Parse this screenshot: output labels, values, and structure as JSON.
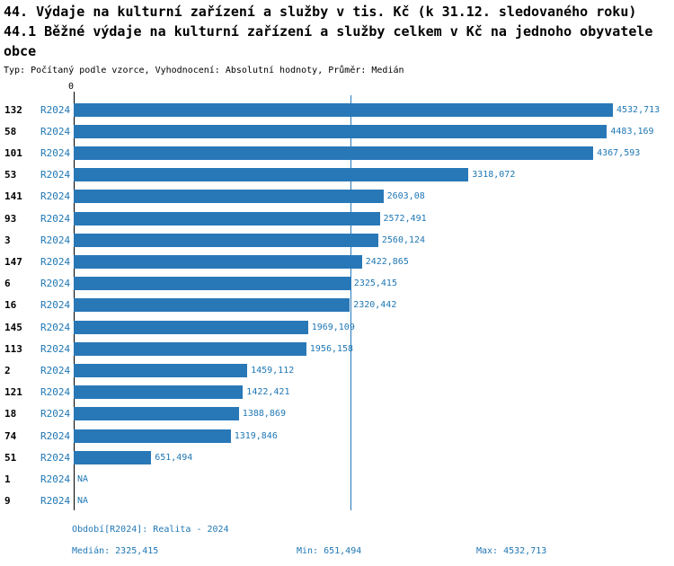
{
  "header": {
    "title_line1": "44. Výdaje na kulturní zařízení a služby v tis. Kč (k 31.12. sledovaného roku)",
    "title_line2": "44.1 Běžné výdaje na kulturní zařízení a služby celkem v Kč na jednoho obyvatele obce",
    "subtitle": "Typ: Počítaný podle vzorce, Vyhodnocení: Absolutní hodnoty, Průměr: Medián"
  },
  "chart_data": {
    "type": "bar",
    "orientation": "horizontal",
    "series_label": "R2024",
    "axis_zero_label": "0",
    "xlim": [
      0,
      4532.713
    ],
    "median_value": 2325.415,
    "na_label": "NA",
    "legend_position": "none",
    "grid": false,
    "rows": [
      {
        "id": "132",
        "value": 4532.713,
        "label": "4532,713"
      },
      {
        "id": "58",
        "value": 4483.169,
        "label": "4483,169"
      },
      {
        "id": "101",
        "value": 4367.593,
        "label": "4367,593"
      },
      {
        "id": "53",
        "value": 3318.072,
        "label": "3318,072"
      },
      {
        "id": "141",
        "value": 2603.08,
        "label": "2603,08"
      },
      {
        "id": "93",
        "value": 2572.491,
        "label": "2572,491"
      },
      {
        "id": "3",
        "value": 2560.124,
        "label": "2560,124"
      },
      {
        "id": "147",
        "value": 2422.865,
        "label": "2422,865"
      },
      {
        "id": "6",
        "value": 2325.415,
        "label": "2325,415"
      },
      {
        "id": "16",
        "value": 2320.442,
        "label": "2320,442"
      },
      {
        "id": "145",
        "value": 1969.109,
        "label": "1969,109"
      },
      {
        "id": "113",
        "value": 1956.158,
        "label": "1956,158"
      },
      {
        "id": "2",
        "value": 1459.112,
        "label": "1459,112"
      },
      {
        "id": "121",
        "value": 1422.421,
        "label": "1422,421"
      },
      {
        "id": "18",
        "value": 1388.869,
        "label": "1388,869"
      },
      {
        "id": "74",
        "value": 1319.846,
        "label": "1319,846"
      },
      {
        "id": "51",
        "value": 651.494,
        "label": "651,494"
      },
      {
        "id": "1",
        "value": null,
        "label": "NA"
      },
      {
        "id": "9",
        "value": null,
        "label": "NA"
      }
    ]
  },
  "footer": {
    "period_line": "Období[R2024]: Realita - 2024",
    "median": "Medián: 2325,415",
    "min": "Min: 651,494",
    "max": "Max: 4532,713"
  },
  "colors": {
    "bar": "#2878b8",
    "accent_text": "#1f77b4",
    "median_line": "#2878b8",
    "axis": "#000000"
  }
}
